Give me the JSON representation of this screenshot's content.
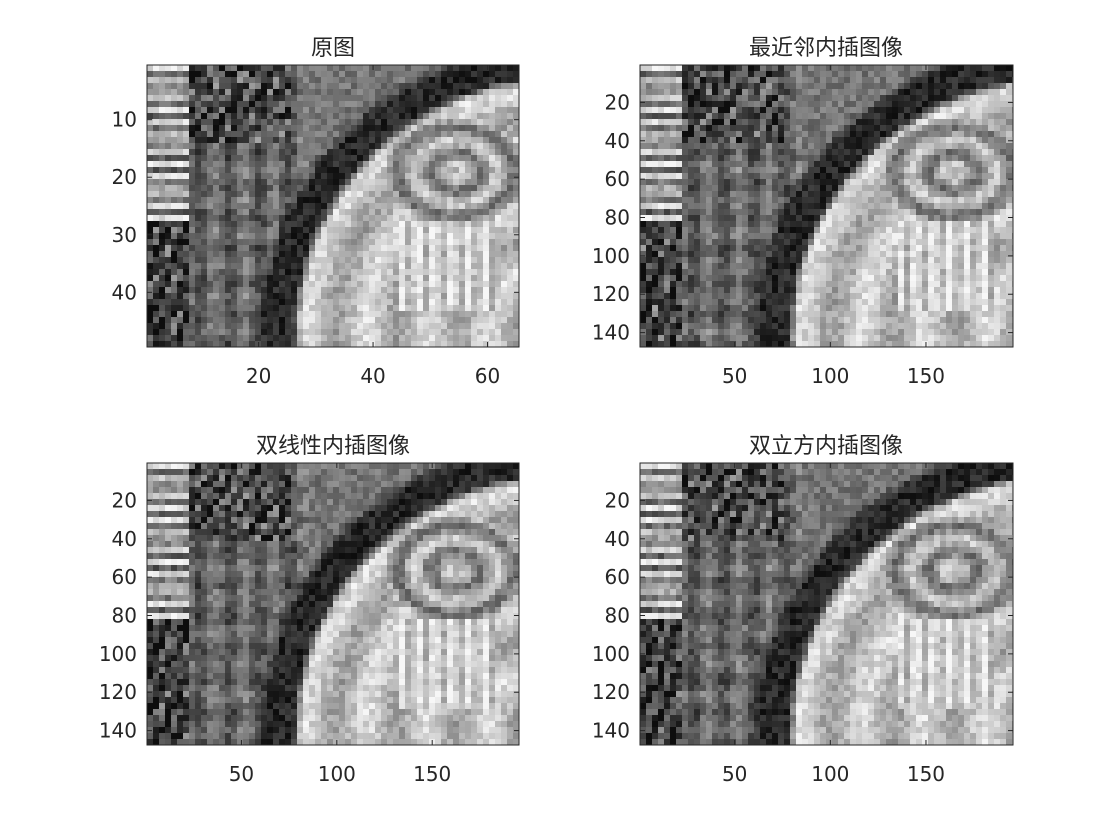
{
  "figure": {
    "background": "#ffffff",
    "axis_color": "#262626"
  },
  "chart_data": [
    {
      "type": "heatmap",
      "title": "原图",
      "colormap": "gray",
      "image_size": {
        "cols": 65,
        "rows": 49
      },
      "xlim": [
        0.5,
        65.5
      ],
      "ylim": [
        0.5,
        49.5
      ],
      "y_reversed": true,
      "xticks": [
        20,
        40,
        60
      ],
      "yticks": [
        10,
        20,
        30,
        40
      ]
    },
    {
      "type": "heatmap",
      "title": "最近邻内插图像",
      "colormap": "gray",
      "image_size": {
        "cols": 195,
        "rows": 147
      },
      "xlim": [
        0.5,
        195.5
      ],
      "ylim": [
        0.5,
        147.5
      ],
      "y_reversed": true,
      "xticks": [
        50,
        100,
        150
      ],
      "yticks": [
        20,
        40,
        60,
        80,
        100,
        120,
        140
      ]
    },
    {
      "type": "heatmap",
      "title": "双线性内插图像",
      "colormap": "gray",
      "image_size": {
        "cols": 195,
        "rows": 147
      },
      "xlim": [
        0.5,
        195.5
      ],
      "ylim": [
        0.5,
        147.5
      ],
      "y_reversed": true,
      "xticks": [
        50,
        100,
        150
      ],
      "yticks": [
        20,
        40,
        60,
        80,
        100,
        120,
        140
      ]
    },
    {
      "type": "heatmap",
      "title": "双立方内插图像",
      "colormap": "gray",
      "image_size": {
        "cols": 195,
        "rows": 147
      },
      "xlim": [
        0.5,
        195.5
      ],
      "ylim": [
        0.5,
        147.5
      ],
      "y_reversed": true,
      "xticks": [
        50,
        100,
        150
      ],
      "yticks": [
        20,
        40,
        60,
        80,
        100,
        120,
        140
      ]
    }
  ]
}
